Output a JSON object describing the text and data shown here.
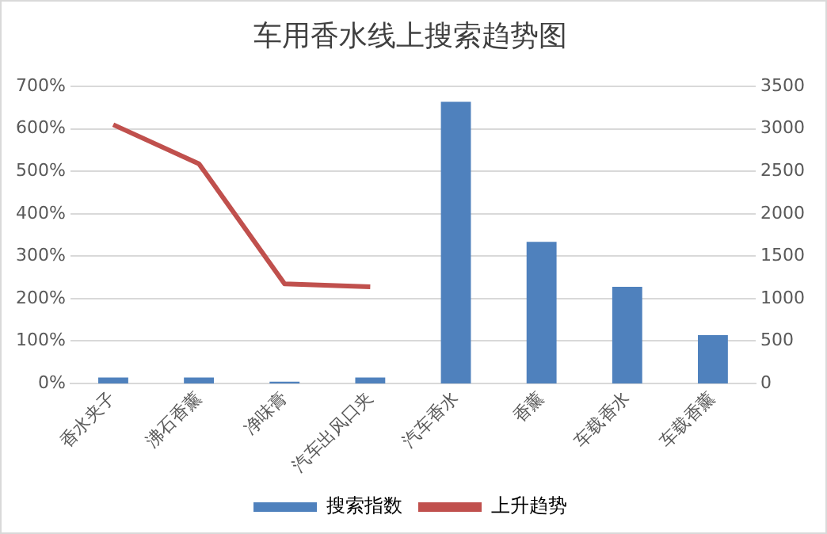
{
  "chart_data": {
    "type": "bar",
    "title": "车用香水线上搜索趋势图",
    "categories": [
      "香水夹子",
      "沸石香薰",
      "净味膏",
      "汽车出风口夹",
      "汽车香水",
      "香薰",
      "车载香水",
      "车载香薰"
    ],
    "series": [
      {
        "name": "搜索指数",
        "axis": "y2",
        "color": "#4f81bd",
        "values": [
          70,
          70,
          20,
          70,
          3320,
          1670,
          1140,
          570
        ]
      },
      {
        "name": "上升趋势",
        "type": "line",
        "axis": "y",
        "color": "#c0504d",
        "values": [
          610,
          518,
          235,
          228,
          null,
          null,
          null,
          null
        ]
      }
    ],
    "ylim": [
      0,
      700
    ],
    "yticks": [
      {
        "value": 0,
        "label": "0%"
      },
      {
        "value": 100,
        "label": "100%"
      },
      {
        "value": 200,
        "label": "200%"
      },
      {
        "value": 300,
        "label": "300%"
      },
      {
        "value": 400,
        "label": "400%"
      },
      {
        "value": 500,
        "label": "500%"
      },
      {
        "value": 600,
        "label": "600%"
      },
      {
        "value": 700,
        "label": "700%"
      }
    ],
    "y2lim": [
      0,
      3500
    ],
    "y2ticks": [
      0,
      500,
      1000,
      1500,
      2000,
      2500,
      3000,
      3500
    ],
    "grid": "y",
    "legend": "bottom",
    "marker": "none"
  }
}
